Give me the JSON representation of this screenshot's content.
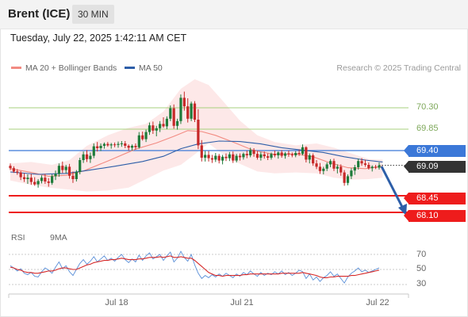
{
  "header": {
    "symbol": "Brent (ICE)",
    "timeframe": "30 MIN"
  },
  "datetime": "Tuesday, July 22, 2025 1:42:11 AM CET",
  "legend": [
    {
      "label": "MA 20 + Bollinger Bands",
      "color": "#f28b82"
    },
    {
      "label": "MA 50",
      "color": "#2d5ea8"
    }
  ],
  "copyright": "Research © 2025 Trading Central",
  "colors": {
    "up": "#1e7b3a",
    "down": "#c62828",
    "ma20": "#f28b82",
    "ma50": "#2d5ea8",
    "band": "#fde4e4",
    "resistance": "#a7d07c",
    "pivot": "#3b78d8",
    "support": "#ee1c1c",
    "price": "#333333",
    "arrow": "#2d5ea8"
  },
  "chart_data": [
    {
      "type": "candlestick",
      "title": "",
      "x_labels": [
        "Jul 18",
        "Jul 21",
        "Jul 22"
      ],
      "levels": [
        {
          "name": "resistance",
          "value": 70.3,
          "label": "70.30"
        },
        {
          "name": "resistance",
          "value": 69.85,
          "label": "69.85"
        },
        {
          "name": "pivot",
          "value": 69.4,
          "label": "69.40"
        },
        {
          "name": "last",
          "value": 69.09,
          "label": "69.09"
        },
        {
          "name": "support",
          "value": 68.45,
          "label": "68.45"
        },
        {
          "name": "support",
          "value": 68.1,
          "label": "68.10"
        }
      ],
      "ohlc": [
        [
          69.08,
          69.13,
          68.99,
          69.03
        ],
        [
          69.03,
          69.07,
          68.93,
          68.96
        ],
        [
          68.96,
          69.01,
          68.89,
          68.94
        ],
        [
          68.94,
          68.97,
          68.78,
          68.84
        ],
        [
          68.84,
          68.92,
          68.74,
          68.8
        ],
        [
          68.8,
          68.9,
          68.7,
          68.83
        ],
        [
          68.83,
          68.91,
          68.68,
          68.74
        ],
        [
          68.74,
          68.84,
          68.66,
          68.69
        ],
        [
          68.69,
          68.8,
          68.62,
          68.76
        ],
        [
          68.76,
          68.88,
          68.71,
          68.83
        ],
        [
          68.83,
          68.91,
          68.7,
          68.75
        ],
        [
          68.75,
          68.82,
          68.64,
          68.72
        ],
        [
          68.72,
          68.9,
          68.68,
          68.86
        ],
        [
          68.86,
          68.98,
          68.78,
          68.91
        ],
        [
          68.91,
          69.13,
          68.85,
          69.08
        ],
        [
          69.08,
          69.17,
          68.93,
          68.99
        ],
        [
          68.99,
          69.1,
          68.92,
          69.06
        ],
        [
          69.06,
          69.12,
          68.81,
          68.87
        ],
        [
          68.87,
          68.96,
          68.72,
          68.8
        ],
        [
          68.8,
          68.99,
          68.75,
          68.95
        ],
        [
          68.95,
          69.25,
          68.9,
          69.2
        ],
        [
          69.2,
          69.38,
          69.14,
          69.32
        ],
        [
          69.32,
          69.41,
          69.16,
          69.22
        ],
        [
          69.22,
          69.36,
          69.14,
          69.29
        ],
        [
          69.29,
          69.55,
          69.24,
          69.49
        ],
        [
          69.49,
          69.58,
          69.38,
          69.45
        ],
        [
          69.45,
          69.55,
          69.39,
          69.5
        ],
        [
          69.5,
          69.57,
          69.44,
          69.54
        ],
        [
          69.54,
          69.58,
          69.48,
          69.51
        ],
        [
          69.51,
          69.56,
          69.44,
          69.53
        ],
        [
          69.53,
          69.57,
          69.47,
          69.52
        ],
        [
          69.52,
          69.59,
          69.46,
          69.54
        ],
        [
          69.54,
          69.6,
          69.48,
          69.55
        ],
        [
          69.55,
          69.6,
          69.45,
          69.5
        ],
        [
          69.5,
          69.53,
          69.4,
          69.46
        ],
        [
          69.46,
          69.53,
          69.4,
          69.5
        ],
        [
          69.5,
          69.55,
          69.42,
          69.47
        ],
        [
          69.47,
          69.79,
          69.44,
          69.72
        ],
        [
          69.72,
          69.8,
          69.61,
          69.64
        ],
        [
          69.64,
          69.84,
          69.58,
          69.79
        ],
        [
          69.79,
          69.99,
          69.73,
          69.93
        ],
        [
          69.93,
          70.01,
          69.75,
          69.82
        ],
        [
          69.82,
          69.92,
          69.7,
          69.87
        ],
        [
          69.87,
          70.02,
          69.79,
          69.96
        ],
        [
          69.96,
          70.1,
          69.88,
          69.91
        ],
        [
          69.91,
          70.12,
          69.85,
          70.07
        ],
        [
          70.07,
          70.35,
          70.02,
          70.29
        ],
        [
          70.29,
          70.37,
          69.86,
          69.92
        ],
        [
          69.92,
          70.07,
          69.84,
          70.02
        ],
        [
          70.02,
          70.58,
          69.96,
          70.51
        ],
        [
          70.51,
          70.64,
          70.24,
          70.33
        ],
        [
          70.33,
          70.5,
          69.99,
          70.07
        ],
        [
          70.07,
          70.43,
          70.02,
          70.39
        ],
        [
          70.39,
          70.44,
          70.0,
          70.05
        ],
        [
          70.05,
          70.27,
          69.43,
          69.51
        ],
        [
          69.51,
          69.62,
          69.17,
          69.25
        ],
        [
          69.25,
          69.39,
          69.17,
          69.31
        ],
        [
          69.31,
          69.39,
          69.17,
          69.24
        ],
        [
          69.24,
          69.31,
          69.14,
          69.21
        ],
        [
          69.21,
          69.35,
          69.16,
          69.29
        ],
        [
          69.29,
          69.33,
          69.13,
          69.19
        ],
        [
          69.19,
          69.31,
          69.11,
          69.27
        ],
        [
          69.27,
          69.34,
          69.18,
          69.24
        ],
        [
          69.24,
          69.37,
          69.18,
          69.32
        ],
        [
          69.32,
          69.38,
          69.14,
          69.19
        ],
        [
          69.19,
          69.33,
          69.15,
          69.29
        ],
        [
          69.29,
          69.34,
          69.19,
          69.26
        ],
        [
          69.26,
          69.36,
          69.21,
          69.33
        ],
        [
          69.33,
          69.4,
          69.24,
          69.3
        ],
        [
          69.3,
          69.46,
          69.26,
          69.41
        ],
        [
          69.41,
          69.45,
          69.27,
          69.33
        ],
        [
          69.33,
          69.39,
          69.21,
          69.25
        ],
        [
          69.25,
          69.37,
          69.19,
          69.32
        ],
        [
          69.32,
          69.38,
          69.23,
          69.28
        ],
        [
          69.28,
          69.34,
          69.2,
          69.25
        ],
        [
          69.25,
          69.36,
          69.21,
          69.33
        ],
        [
          69.33,
          69.4,
          69.26,
          69.3
        ],
        [
          69.3,
          69.38,
          69.23,
          69.36
        ],
        [
          69.36,
          69.41,
          69.25,
          69.29
        ],
        [
          69.29,
          69.37,
          69.23,
          69.34
        ],
        [
          69.34,
          69.4,
          69.27,
          69.32
        ],
        [
          69.32,
          69.36,
          69.26,
          69.3
        ],
        [
          69.3,
          69.39,
          69.26,
          69.35
        ],
        [
          69.35,
          69.42,
          69.29,
          69.33
        ],
        [
          69.33,
          69.53,
          69.3,
          69.47
        ],
        [
          69.47,
          69.49,
          69.15,
          69.21
        ],
        [
          69.21,
          69.34,
          69.13,
          69.3
        ],
        [
          69.3,
          69.34,
          69.08,
          69.13
        ],
        [
          69.13,
          69.2,
          69.01,
          69.06
        ],
        [
          69.06,
          69.14,
          68.91,
          68.97
        ],
        [
          68.97,
          69.06,
          68.9,
          69.02
        ],
        [
          69.02,
          69.15,
          68.97,
          69.11
        ],
        [
          69.11,
          69.22,
          69.05,
          69.18
        ],
        [
          69.18,
          69.23,
          68.97,
          69.02
        ],
        [
          69.02,
          69.11,
          68.92,
          69.06
        ],
        [
          69.06,
          69.11,
          68.87,
          68.94
        ],
        [
          68.94,
          68.99,
          68.66,
          68.72
        ],
        [
          68.72,
          68.9,
          68.67,
          68.86
        ],
        [
          68.86,
          69.03,
          68.8,
          68.98
        ],
        [
          68.98,
          69.1,
          68.89,
          69.05
        ],
        [
          69.05,
          69.23,
          69.0,
          69.18
        ],
        [
          69.18,
          69.24,
          69.08,
          69.13
        ],
        [
          69.13,
          69.21,
          69.06,
          69.1
        ],
        [
          69.1,
          69.15,
          69.0,
          69.03
        ],
        [
          69.03,
          69.09,
          68.96,
          69.06
        ],
        [
          69.06,
          69.1,
          69.01,
          69.04
        ],
        [
          69.04,
          69.15,
          69.0,
          69.09
        ]
      ],
      "ma20": [
        [
          0,
          69.02
        ],
        [
          6,
          68.94
        ],
        [
          11,
          68.86
        ],
        [
          16,
          68.88
        ],
        [
          21,
          68.97
        ],
        [
          28,
          69.18
        ],
        [
          36,
          69.43
        ],
        [
          42,
          69.56
        ],
        [
          47,
          69.7
        ],
        [
          51,
          69.82
        ],
        [
          55,
          69.8
        ],
        [
          59,
          69.72
        ],
        [
          64,
          69.58
        ],
        [
          70,
          69.4
        ],
        [
          76,
          69.32
        ],
        [
          82,
          69.33
        ],
        [
          87,
          69.27
        ],
        [
          92,
          69.14
        ],
        [
          97,
          69.04
        ],
        [
          102,
          69.02
        ],
        [
          107,
          69.07
        ]
      ],
      "ma50": [
        [
          0,
          68.95
        ],
        [
          8,
          68.9
        ],
        [
          16,
          68.92
        ],
        [
          22,
          68.98
        ],
        [
          30,
          69.07
        ],
        [
          38,
          69.17
        ],
        [
          44,
          69.28
        ],
        [
          49,
          69.44
        ],
        [
          54,
          69.54
        ],
        [
          60,
          69.6
        ],
        [
          66,
          69.59
        ],
        [
          72,
          69.54
        ],
        [
          78,
          69.46
        ],
        [
          84,
          69.41
        ],
        [
          90,
          69.36
        ],
        [
          96,
          69.27
        ],
        [
          102,
          69.2
        ],
        [
          107,
          69.16
        ]
      ],
      "band_upper": [
        [
          0,
          69.13
        ],
        [
          6,
          69.16
        ],
        [
          12,
          69.1
        ],
        [
          17,
          69.2
        ],
        [
          22,
          69.5
        ],
        [
          28,
          69.72
        ],
        [
          34,
          69.88
        ],
        [
          39,
          69.96
        ],
        [
          44,
          70.22
        ],
        [
          49,
          70.7
        ],
        [
          53,
          70.9
        ],
        [
          57,
          70.78
        ],
        [
          61,
          70.45
        ],
        [
          66,
          70.03
        ],
        [
          71,
          69.72
        ],
        [
          76,
          69.58
        ],
        [
          82,
          69.51
        ],
        [
          88,
          69.55
        ],
        [
          93,
          69.46
        ],
        [
          98,
          69.34
        ],
        [
          103,
          69.22
        ],
        [
          107,
          69.21
        ]
      ],
      "band_lower": [
        [
          0,
          68.77
        ],
        [
          6,
          68.68
        ],
        [
          11,
          68.62
        ],
        [
          17,
          68.58
        ],
        [
          22,
          68.54
        ],
        [
          28,
          68.56
        ],
        [
          34,
          68.62
        ],
        [
          39,
          68.8
        ],
        [
          44,
          68.98
        ],
        [
          49,
          69.1
        ],
        [
          53,
          69.32
        ],
        [
          57,
          69.55
        ],
        [
          61,
          69.33
        ],
        [
          66,
          69.12
        ],
        [
          71,
          68.96
        ],
        [
          76,
          68.92
        ],
        [
          82,
          68.94
        ],
        [
          88,
          68.92
        ],
        [
          93,
          68.83
        ],
        [
          98,
          68.79
        ],
        [
          103,
          68.8
        ],
        [
          107,
          68.83
        ]
      ]
    },
    {
      "type": "line",
      "title": "",
      "legend": [
        {
          "label": "RSI",
          "color": "#5a8fd8"
        },
        {
          "label": "9MA",
          "color": "#d62828"
        }
      ],
      "ylim": [
        20,
        80
      ],
      "y_ticks": [
        "70",
        "50",
        "30"
      ],
      "rsi": [
        55,
        52,
        48,
        51,
        45,
        43,
        46,
        41,
        40,
        47,
        52,
        49,
        45,
        53,
        60,
        51,
        55,
        47,
        42,
        50,
        58,
        63,
        57,
        61,
        67,
        60,
        64,
        68,
        62,
        65,
        61,
        66,
        70,
        63,
        59,
        64,
        60,
        69,
        62,
        68,
        72,
        64,
        67,
        70,
        62,
        68,
        73,
        60,
        65,
        74,
        66,
        61,
        70,
        56,
        45,
        38,
        42,
        39,
        43,
        40,
        44,
        41,
        45,
        42,
        39,
        44,
        41,
        46,
        43,
        48,
        44,
        41,
        46,
        42,
        45,
        43,
        47,
        44,
        48,
        43,
        46,
        42,
        45,
        49,
        47,
        38,
        44,
        36,
        40,
        34,
        39,
        42,
        47,
        41,
        44,
        38,
        32,
        40,
        45,
        48,
        52,
        47,
        49,
        46,
        48,
        50,
        52
      ],
      "ma9": [
        53,
        52,
        50,
        49,
        47,
        46,
        46,
        45,
        45,
        46,
        47,
        48,
        48,
        49,
        51,
        52,
        52,
        51,
        50,
        50,
        52,
        54,
        56,
        57,
        59,
        60,
        61,
        62,
        62,
        63,
        63,
        64,
        65,
        64,
        63,
        63,
        63,
        64,
        64,
        65,
        66,
        66,
        66,
        67,
        66,
        67,
        68,
        66,
        66,
        67,
        66,
        65,
        65,
        62,
        58,
        54,
        50,
        46,
        44,
        42,
        42,
        41,
        42,
        42,
        42,
        42,
        42,
        43,
        43,
        44,
        44,
        44,
        44,
        44,
        44,
        44,
        44,
        44,
        45,
        45,
        45,
        45,
        45,
        45,
        46,
        45,
        44,
        43,
        42,
        40,
        39,
        39,
        40,
        40,
        41,
        41,
        41,
        41,
        42,
        42,
        43,
        44,
        45,
        46,
        47,
        48,
        49
      ]
    }
  ],
  "rsi_legend": [
    {
      "label": "RSI",
      "color": "#5a8fd8"
    },
    {
      "label": "9MA",
      "color": "#d62828"
    }
  ],
  "rsi_ticks": [
    "70",
    "50",
    "30"
  ],
  "x_labels": [
    "Jul 18",
    "Jul 21",
    "Jul 22"
  ]
}
